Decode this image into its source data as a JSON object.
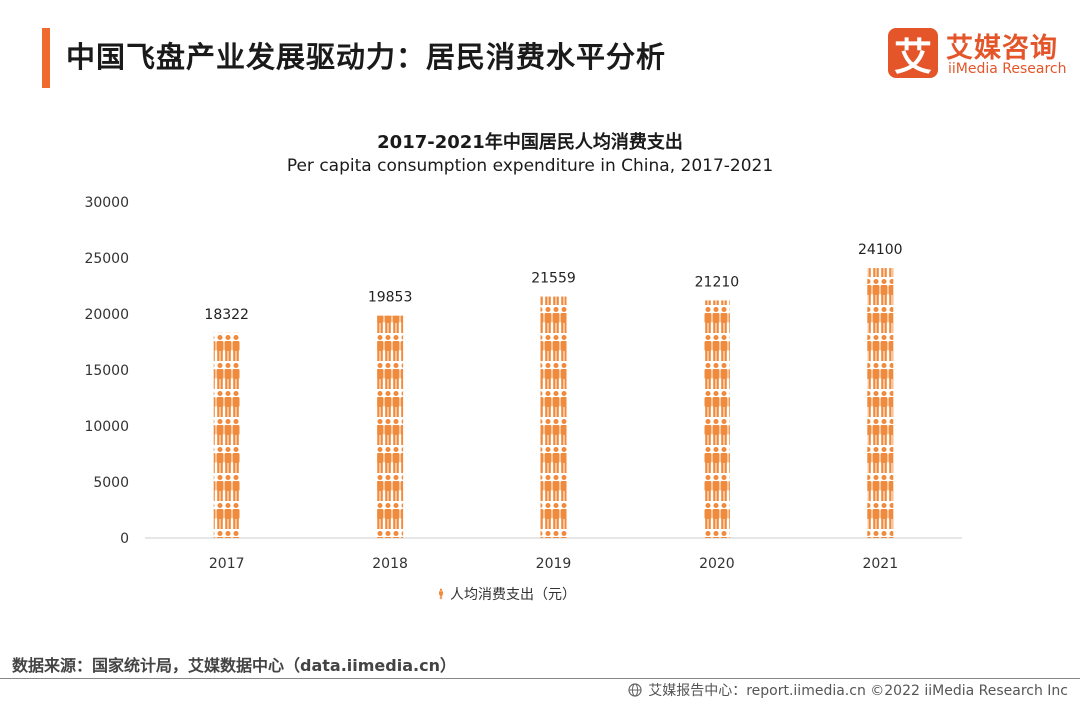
{
  "page": {
    "title": "中国飞盘产业发展驱动力：居民消费水平分析"
  },
  "logo": {
    "mark": "艾",
    "cn": "艾媒咨询",
    "en": "iiMedia Research"
  },
  "chart_data": {
    "type": "bar",
    "title": "2017-2021年中国居民人均消费支出",
    "subtitle": "Per capita consumption expenditure in China, 2017-2021",
    "categories": [
      "2017",
      "2018",
      "2019",
      "2020",
      "2021"
    ],
    "series": [
      {
        "name": "人均消费支出（元）",
        "values": [
          18322,
          19853,
          21559,
          21210,
          24100
        ]
      }
    ],
    "ylim": [
      0,
      30000
    ],
    "yticks": [
      0,
      5000,
      10000,
      15000,
      20000,
      25000,
      30000
    ],
    "bar_style": "stacked person pictograms",
    "color": "#f08a3c",
    "grid": false,
    "legend": "bottom"
  },
  "source": "数据来源：国家统计局，艾媒数据中心（data.iimedia.cn）",
  "footer": {
    "text": "艾媒报告中心：report.iimedia.cn ©2022 iiMedia Research Inc"
  }
}
